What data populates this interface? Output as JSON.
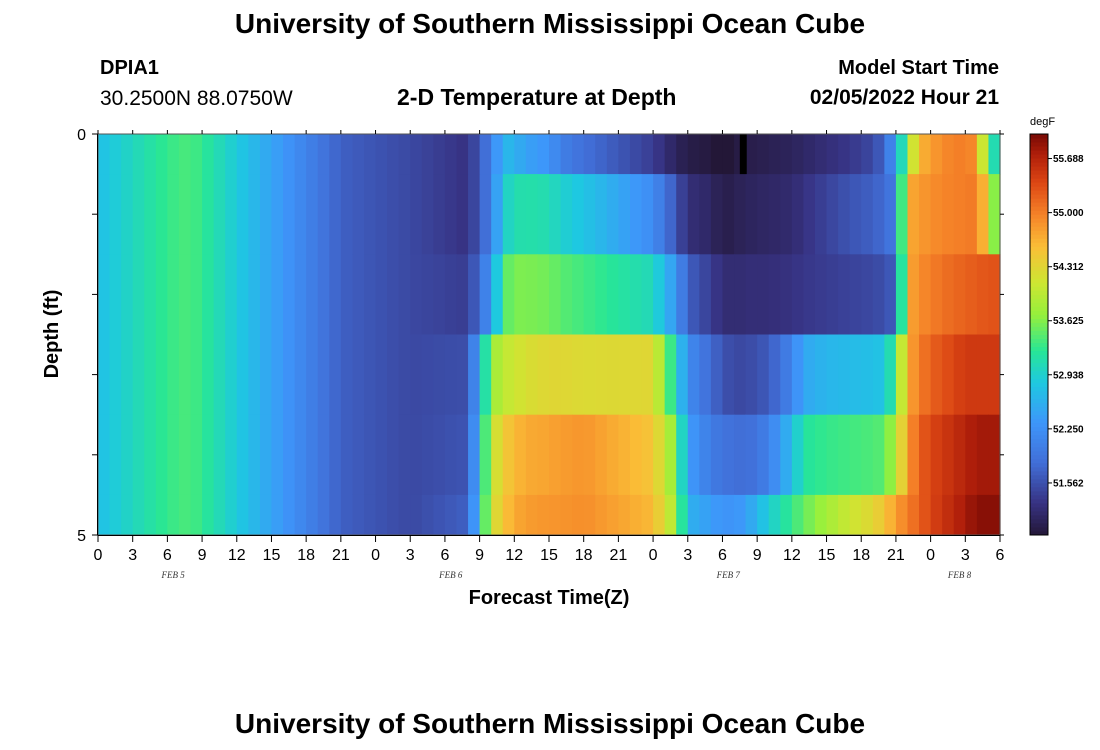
{
  "header": {
    "title": "University of Southern Mississippi Ocean Cube",
    "station_id": "DPIA1",
    "coordinates": "30.2500N  88.0750W",
    "plot_title": "2-D Temperature at Depth",
    "model_start_label": "Model Start Time",
    "model_start_value": "02/05/2022 Hour 21"
  },
  "footer": {
    "title": "University of Southern Mississippi Ocean Cube"
  },
  "chart_data": {
    "type": "heatmap",
    "xlabel": "Forecast Time(Z)",
    "ylabel": "Depth (ft)",
    "colorbar_unit": "degF",
    "x_tick_labels": [
      "0",
      "3",
      "6",
      "9",
      "12",
      "15",
      "18",
      "21",
      "0",
      "3",
      "6",
      "9",
      "12",
      "15",
      "18",
      "21",
      "0",
      "3",
      "6",
      "9",
      "12",
      "15",
      "18",
      "21",
      "0",
      "3",
      "6"
    ],
    "date_labels": [
      "FEB 5",
      "FEB 6",
      "FEB 7",
      "FEB 8"
    ],
    "y_tick_labels": [
      "0",
      "5"
    ],
    "ylim": [
      0,
      5
    ],
    "xlim_hours": [
      0,
      78
    ],
    "colorbar_ticks": [
      "55.688",
      "55.000",
      "54.312",
      "53.625",
      "52.938",
      "52.250",
      "51.562"
    ],
    "color_range_degF": [
      50.9,
      56.0
    ],
    "depth_layers_ft": [
      0.25,
      1.25,
      2.25,
      3.25,
      4.25,
      4.75
    ],
    "time_nodes_hours": [
      0,
      6,
      8,
      14,
      21,
      27,
      32,
      34,
      35,
      36,
      37,
      39,
      40,
      42,
      48,
      50,
      51,
      53,
      54,
      55,
      56,
      58,
      60,
      61,
      63,
      65,
      67,
      68,
      69,
      70,
      71,
      72,
      73,
      74,
      75,
      76,
      77,
      78
    ],
    "values_degF": [
      [
        52.75,
        53.3,
        53.4,
        52.6,
        51.7,
        51.5,
        51.3,
        52.0,
        52.7,
        52.6,
        52.45,
        52.3,
        52.05,
        51.85,
        51.4,
        51.1,
        51.0,
        50.95,
        50.8,
        50.95,
        51.0,
        51.05,
        51.1,
        51.15,
        51.25,
        51.35,
        51.5,
        51.75,
        52.4,
        53.7,
        54.6,
        54.8,
        54.9,
        55.0,
        55.0,
        54.9,
        53.3,
        52.9
      ],
      [
        52.75,
        53.3,
        53.4,
        52.6,
        51.7,
        51.5,
        51.3,
        52.0,
        52.9,
        53.1,
        53.15,
        53.1,
        52.95,
        52.8,
        52.2,
        51.6,
        51.25,
        51.15,
        51.0,
        51.05,
        51.1,
        51.15,
        51.2,
        51.3,
        51.45,
        51.6,
        51.7,
        51.8,
        52.0,
        54.7,
        54.8,
        54.9,
        54.95,
        55.0,
        55.0,
        55.05,
        54.3,
        53.0
      ],
      [
        52.75,
        53.3,
        53.4,
        52.6,
        51.7,
        51.5,
        51.4,
        52.3,
        53.4,
        53.6,
        53.6,
        53.55,
        53.45,
        53.35,
        53.05,
        52.3,
        51.7,
        51.4,
        51.25,
        51.2,
        51.25,
        51.25,
        51.3,
        51.35,
        51.4,
        51.45,
        51.5,
        51.55,
        51.7,
        54.7,
        54.9,
        55.0,
        55.1,
        55.15,
        55.2,
        55.25,
        55.3,
        55.3
      ],
      [
        52.75,
        53.3,
        53.4,
        52.6,
        51.7,
        51.5,
        51.55,
        53.7,
        54.0,
        54.1,
        54.2,
        54.3,
        54.3,
        54.25,
        54.3,
        53.0,
        52.2,
        51.8,
        51.6,
        51.5,
        51.5,
        51.65,
        52.1,
        52.5,
        52.65,
        52.7,
        52.75,
        52.8,
        53.4,
        54.7,
        55.0,
        55.2,
        55.3,
        55.4,
        55.5,
        55.5,
        55.5,
        55.5
      ],
      [
        52.75,
        53.3,
        53.4,
        52.6,
        51.7,
        51.5,
        51.6,
        54.0,
        54.4,
        54.6,
        54.7,
        54.75,
        54.8,
        54.85,
        54.5,
        53.6,
        52.4,
        52.0,
        51.9,
        51.85,
        51.8,
        52.05,
        52.7,
        53.2,
        53.3,
        53.35,
        53.4,
        53.45,
        53.9,
        54.8,
        55.2,
        55.4,
        55.5,
        55.6,
        55.7,
        55.8,
        55.8,
        55.8
      ],
      [
        52.75,
        53.3,
        53.4,
        52.6,
        51.7,
        51.5,
        51.7,
        54.1,
        54.5,
        54.7,
        54.8,
        54.85,
        54.85,
        54.9,
        54.6,
        53.8,
        52.6,
        52.4,
        52.3,
        52.3,
        52.4,
        52.9,
        53.3,
        53.5,
        53.8,
        54.1,
        54.3,
        54.5,
        54.8,
        55.0,
        55.2,
        55.4,
        55.55,
        55.65,
        55.8,
        55.9,
        55.95,
        55.9
      ]
    ],
    "undefined_cell": {
      "hour_range": [
        55.5,
        56.1
      ],
      "depth_range_ft": [
        0,
        0.5
      ]
    }
  }
}
